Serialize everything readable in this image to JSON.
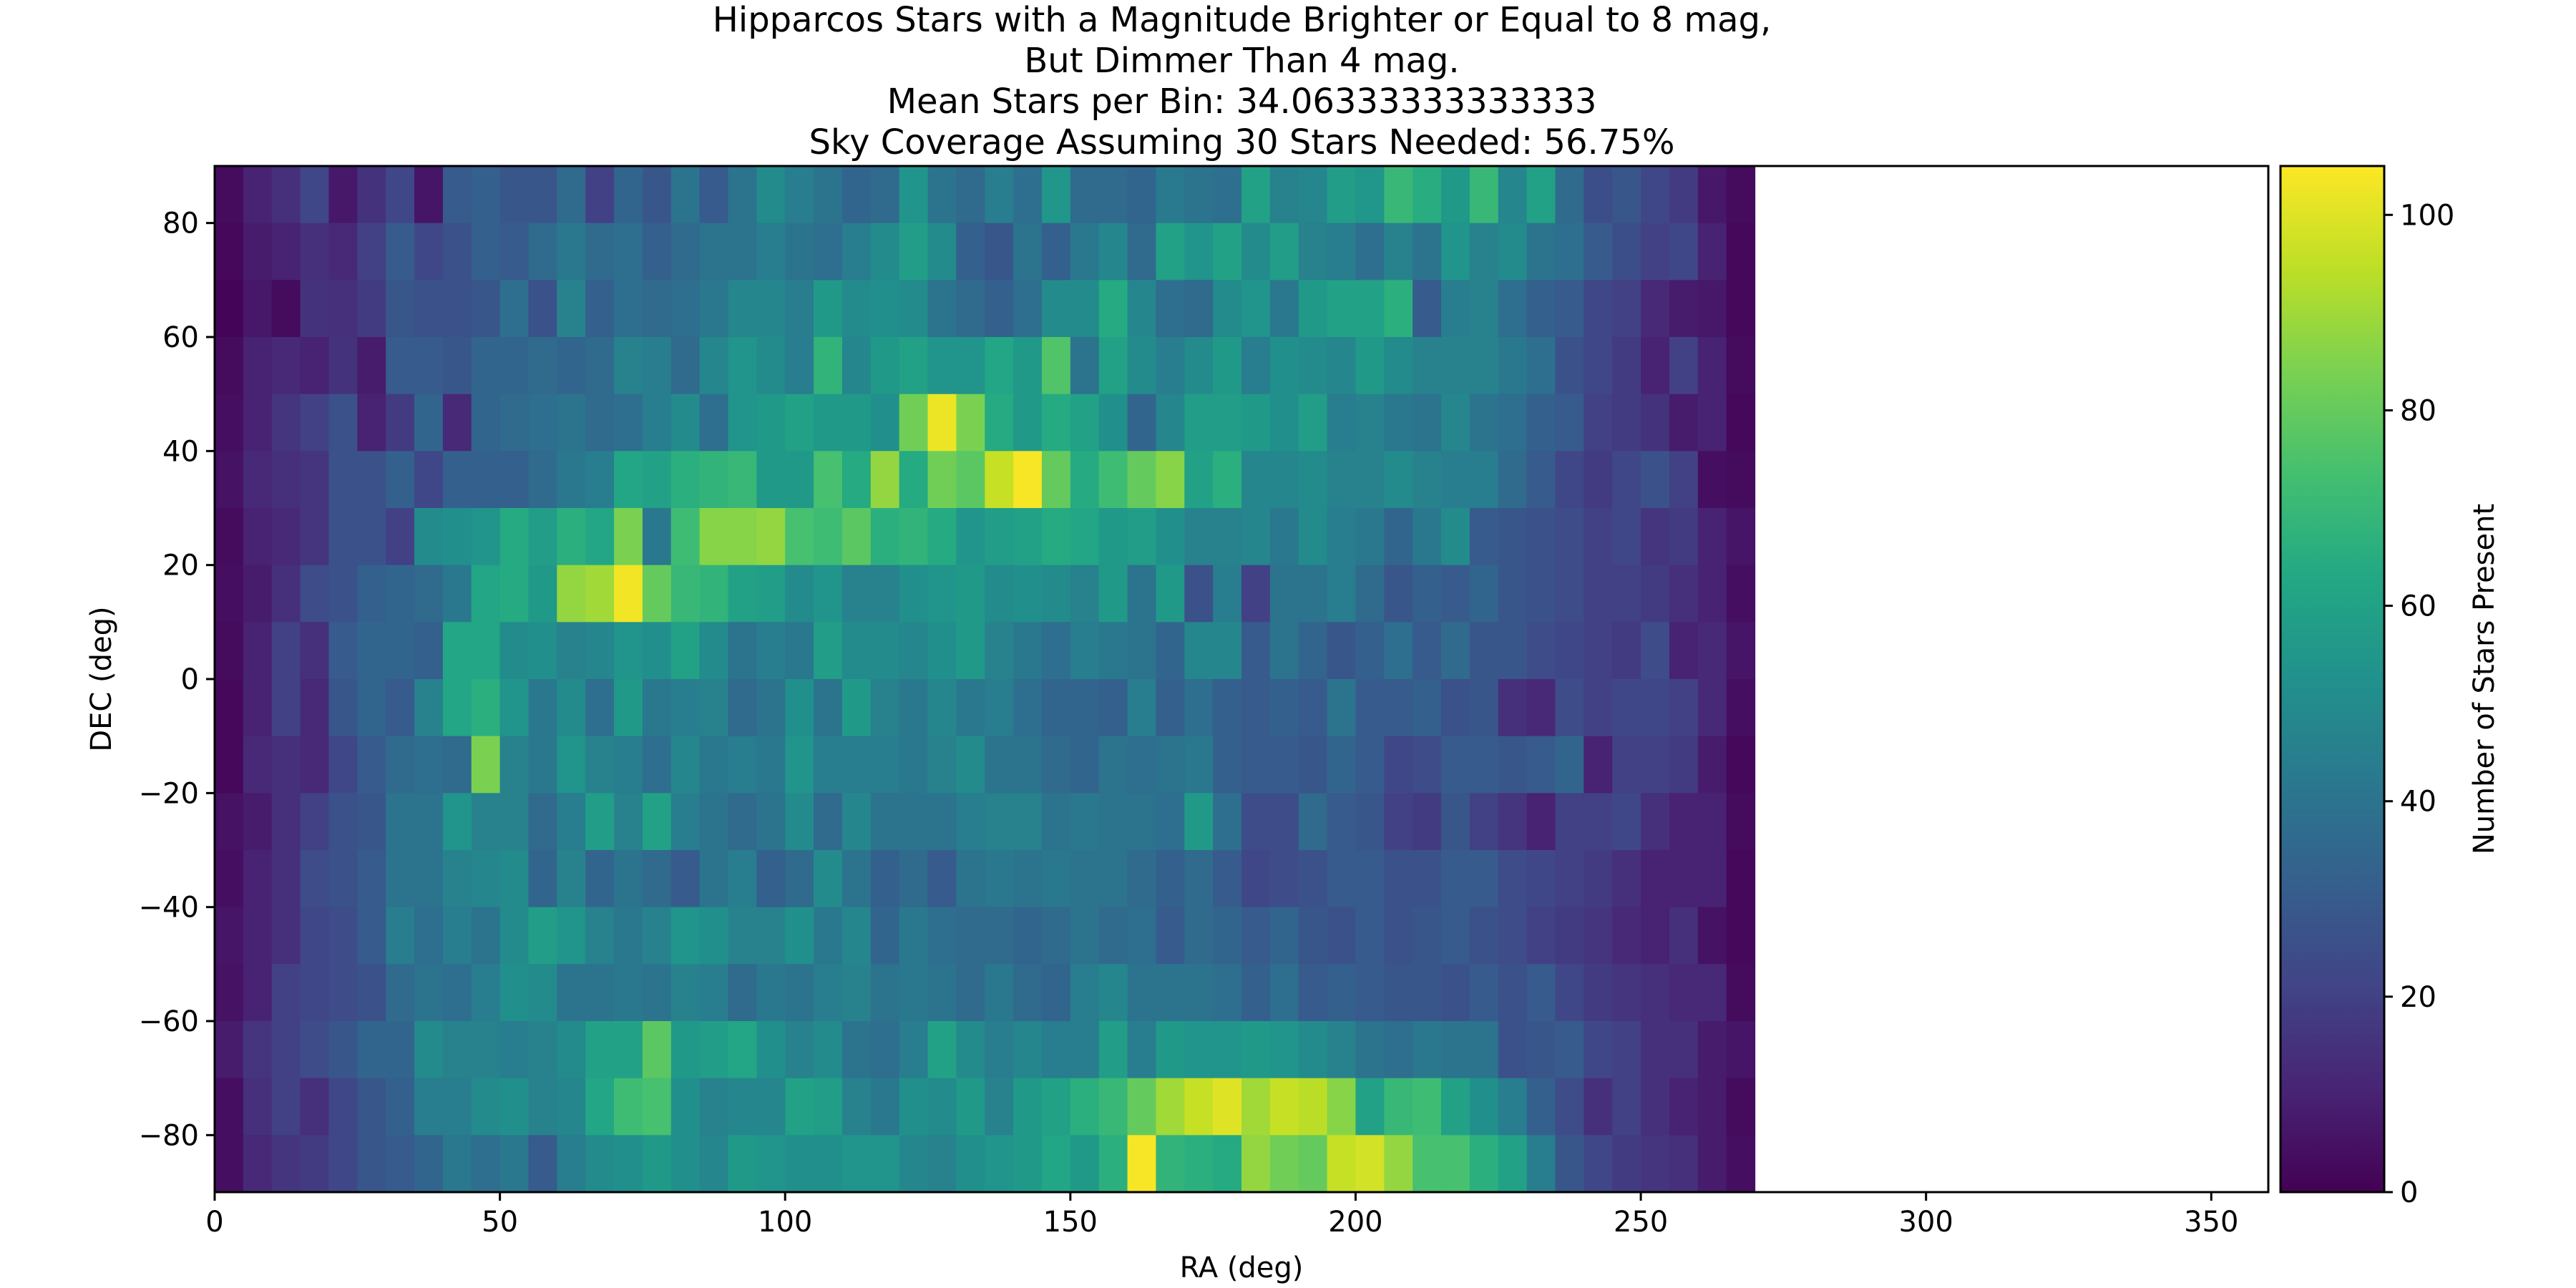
{
  "chart_data": {
    "type": "heatmap",
    "title_lines": [
      "Hipparcos Stars with a Magnitude Brighter or Equal to 8 mag,",
      "But Dimmer Than 4 mag.",
      "Mean Stars per Bin: 34.06333333333333",
      "Sky Coverage Assuming 30 Stars Needed: 56.75%"
    ],
    "xlabel": "RA (deg)",
    "ylabel": "DEC (deg)",
    "colorbar_label": "Number of Stars Present",
    "colormap": "viridis",
    "xlim": [
      0,
      360
    ],
    "ylim": [
      -90,
      90
    ],
    "clim": [
      0,
      105
    ],
    "x_bin_width": 5,
    "y_bin_width": 10,
    "x_ticks": [
      0,
      50,
      100,
      150,
      200,
      250,
      300,
      350
    ],
    "x_tick_labels": [
      "0",
      "50",
      "100",
      "150",
      "200",
      "250",
      "300",
      "350"
    ],
    "y_ticks": [
      -80,
      -60,
      -40,
      -20,
      0,
      20,
      40,
      60,
      80
    ],
    "y_tick_labels": [
      "−80",
      "−60",
      "−40",
      "−20",
      "0",
      "20",
      "40",
      "60",
      "80"
    ],
    "colorbar_ticks": [
      0,
      20,
      40,
      60,
      80,
      100
    ],
    "colorbar_tick_labels": [
      "0",
      "20",
      "40",
      "60",
      "80",
      "100"
    ],
    "dec_bins_top_to_bottom": [
      85,
      75,
      65,
      55,
      45,
      35,
      25,
      15,
      5,
      -5,
      -15,
      -25,
      -35,
      -45,
      -55,
      -65,
      -75,
      -85
    ],
    "values_top_to_bottom": [
      [
        3,
        10,
        14,
        22,
        7,
        15,
        22,
        6,
        30,
        32,
        28,
        28,
        36,
        20,
        34,
        28,
        40,
        30,
        40,
        50,
        44,
        40,
        34,
        36,
        54,
        40,
        36,
        44,
        38,
        55,
        36,
        36,
        34,
        43,
        40,
        38,
        60,
        46,
        48,
        58,
        55,
        70,
        65,
        56,
        70,
        48,
        60,
        36,
        25,
        28,
        22,
        18,
        7,
        3
      ],
      [
        2,
        8,
        10,
        14,
        12,
        20,
        30,
        22,
        26,
        32,
        30,
        36,
        42,
        36,
        38,
        32,
        36,
        40,
        40,
        44,
        40,
        38,
        44,
        50,
        58,
        50,
        32,
        28,
        40,
        32,
        42,
        48,
        36,
        60,
        54,
        60,
        50,
        58,
        46,
        44,
        38,
        46,
        40,
        54,
        46,
        50,
        40,
        38,
        30,
        25,
        20,
        22,
        10,
        2
      ],
      [
        1,
        7,
        3,
        15,
        14,
        18,
        28,
        26,
        26,
        28,
        38,
        26,
        46,
        32,
        38,
        36,
        38,
        42,
        48,
        48,
        44,
        56,
        50,
        52,
        50,
        40,
        36,
        32,
        38,
        50,
        50,
        64,
        48,
        38,
        36,
        50,
        54,
        42,
        56,
        60,
        60,
        66,
        30,
        44,
        46,
        38,
        32,
        30,
        22,
        20,
        12,
        8,
        7,
        2
      ],
      [
        3,
        10,
        12,
        10,
        15,
        8,
        30,
        30,
        28,
        34,
        34,
        36,
        34,
        36,
        46,
        44,
        36,
        48,
        54,
        50,
        44,
        68,
        48,
        56,
        60,
        54,
        54,
        62,
        56,
        76,
        40,
        60,
        50,
        44,
        50,
        56,
        44,
        52,
        50,
        48,
        56,
        50,
        46,
        46,
        46,
        42,
        38,
        26,
        22,
        18,
        10,
        20,
        10,
        3
      ],
      [
        4,
        10,
        16,
        20,
        26,
        10,
        18,
        34,
        12,
        34,
        36,
        38,
        40,
        36,
        38,
        44,
        50,
        38,
        54,
        56,
        60,
        56,
        56,
        52,
        82,
        102,
        84,
        64,
        56,
        64,
        60,
        52,
        34,
        48,
        58,
        58,
        56,
        52,
        58,
        44,
        46,
        42,
        40,
        48,
        40,
        38,
        32,
        30,
        20,
        18,
        15,
        8,
        10,
        2
      ],
      [
        5,
        12,
        14,
        16,
        26,
        26,
        32,
        22,
        32,
        32,
        32,
        36,
        42,
        44,
        62,
        60,
        66,
        68,
        70,
        56,
        56,
        74,
        64,
        88,
        64,
        82,
        78,
        96,
        104,
        80,
        64,
        72,
        80,
        86,
        60,
        66,
        48,
        48,
        50,
        46,
        46,
        50,
        46,
        44,
        44,
        36,
        30,
        22,
        18,
        22,
        26,
        20,
        4,
        3
      ],
      [
        3,
        10,
        12,
        16,
        26,
        26,
        20,
        50,
        52,
        54,
        64,
        58,
        66,
        62,
        84,
        42,
        72,
        86,
        86,
        88,
        74,
        72,
        78,
        66,
        68,
        64,
        54,
        58,
        60,
        64,
        62,
        56,
        58,
        52,
        46,
        46,
        48,
        42,
        50,
        44,
        42,
        34,
        42,
        50,
        30,
        28,
        26,
        24,
        20,
        22,
        16,
        18,
        10,
        6
      ],
      [
        4,
        8,
        14,
        24,
        26,
        32,
        34,
        36,
        42,
        62,
        64,
        56,
        88,
        90,
        103,
        80,
        70,
        68,
        60,
        58,
        50,
        54,
        46,
        46,
        52,
        54,
        56,
        50,
        52,
        50,
        46,
        56,
        40,
        56,
        26,
        44,
        20,
        40,
        40,
        44,
        36,
        28,
        32,
        30,
        34,
        28,
        26,
        24,
        20,
        20,
        18,
        14,
        10,
        4
      ],
      [
        3,
        10,
        20,
        14,
        30,
        34,
        34,
        32,
        62,
        62,
        50,
        52,
        46,
        48,
        54,
        52,
        60,
        50,
        40,
        44,
        42,
        58,
        50,
        50,
        48,
        52,
        56,
        46,
        42,
        38,
        44,
        42,
        40,
        34,
        48,
        48,
        30,
        40,
        34,
        28,
        32,
        38,
        30,
        36,
        28,
        28,
        24,
        22,
        20,
        18,
        24,
        10,
        12,
        6
      ],
      [
        2,
        10,
        20,
        12,
        28,
        34,
        30,
        46,
        62,
        66,
        54,
        42,
        50,
        38,
        56,
        42,
        44,
        46,
        36,
        40,
        52,
        40,
        56,
        46,
        42,
        48,
        42,
        44,
        38,
        34,
        34,
        32,
        44,
        32,
        38,
        32,
        30,
        32,
        30,
        40,
        30,
        30,
        32,
        26,
        28,
        14,
        12,
        24,
        20,
        22,
        22,
        20,
        12,
        4
      ],
      [
        2,
        12,
        14,
        12,
        22,
        30,
        36,
        38,
        36,
        84,
        46,
        42,
        54,
        46,
        44,
        38,
        48,
        42,
        44,
        42,
        54,
        44,
        44,
        44,
        42,
        46,
        50,
        40,
        40,
        36,
        34,
        40,
        38,
        40,
        42,
        32,
        30,
        30,
        28,
        34,
        30,
        22,
        24,
        30,
        30,
        28,
        30,
        34,
        10,
        20,
        20,
        18,
        8,
        2
      ],
      [
        5,
        8,
        14,
        20,
        26,
        28,
        40,
        40,
        54,
        46,
        46,
        36,
        44,
        58,
        46,
        60,
        44,
        40,
        36,
        40,
        50,
        36,
        48,
        40,
        40,
        40,
        44,
        46,
        46,
        40,
        42,
        40,
        40,
        38,
        56,
        38,
        24,
        24,
        36,
        30,
        28,
        20,
        18,
        28,
        20,
        16,
        10,
        20,
        20,
        22,
        14,
        10,
        10,
        3
      ],
      [
        4,
        10,
        14,
        24,
        26,
        30,
        40,
        40,
        46,
        48,
        50,
        34,
        46,
        34,
        40,
        36,
        30,
        40,
        44,
        32,
        36,
        50,
        40,
        32,
        36,
        30,
        40,
        42,
        40,
        42,
        40,
        40,
        36,
        32,
        36,
        30,
        22,
        24,
        26,
        30,
        30,
        26,
        26,
        30,
        30,
        24,
        22,
        20,
        18,
        14,
        10,
        10,
        10,
        2
      ],
      [
        6,
        10,
        14,
        22,
        24,
        30,
        44,
        38,
        44,
        40,
        50,
        58,
        54,
        46,
        42,
        46,
        54,
        52,
        46,
        46,
        52,
        42,
        48,
        34,
        42,
        38,
        36,
        36,
        34,
        36,
        40,
        36,
        38,
        30,
        36,
        34,
        30,
        34,
        28,
        26,
        30,
        26,
        28,
        30,
        26,
        24,
        20,
        18,
        16,
        12,
        10,
        14,
        5,
        2
      ],
      [
        5,
        10,
        20,
        22,
        24,
        26,
        36,
        40,
        38,
        44,
        52,
        50,
        40,
        40,
        42,
        40,
        46,
        44,
        36,
        42,
        40,
        44,
        46,
        40,
        42,
        40,
        36,
        42,
        36,
        34,
        44,
        48,
        40,
        40,
        40,
        38,
        32,
        38,
        30,
        32,
        30,
        28,
        28,
        26,
        30,
        26,
        30,
        22,
        18,
        16,
        14,
        12,
        12,
        3
      ],
      [
        8,
        16,
        20,
        24,
        28,
        34,
        34,
        50,
        46,
        46,
        44,
        46,
        50,
        60,
        60,
        78,
        56,
        58,
        62,
        52,
        46,
        50,
        40,
        38,
        44,
        60,
        50,
        44,
        48,
        44,
        44,
        58,
        44,
        56,
        54,
        54,
        56,
        54,
        50,
        46,
        40,
        38,
        42,
        40,
        40,
        26,
        28,
        30,
        22,
        20,
        14,
        14,
        8,
        6
      ],
      [
        4,
        14,
        20,
        14,
        22,
        28,
        32,
        44,
        44,
        50,
        52,
        46,
        48,
        62,
        72,
        74,
        52,
        46,
        48,
        48,
        60,
        58,
        46,
        42,
        52,
        50,
        56,
        46,
        56,
        60,
        66,
        70,
        80,
        90,
        96,
        100,
        90,
        96,
        94,
        86,
        60,
        70,
        72,
        60,
        52,
        44,
        32,
        24,
        14,
        20,
        14,
        10,
        8,
        3
      ],
      [
        4,
        12,
        16,
        18,
        22,
        28,
        30,
        34,
        42,
        38,
        42,
        30,
        44,
        50,
        52,
        56,
        52,
        48,
        56,
        54,
        52,
        52,
        54,
        54,
        48,
        46,
        52,
        54,
        56,
        62,
        56,
        66,
        104,
        68,
        66,
        64,
        88,
        82,
        80,
        96,
        98,
        88,
        74,
        74,
        66,
        60,
        44,
        28,
        22,
        18,
        16,
        14,
        8,
        4
      ]
    ]
  }
}
